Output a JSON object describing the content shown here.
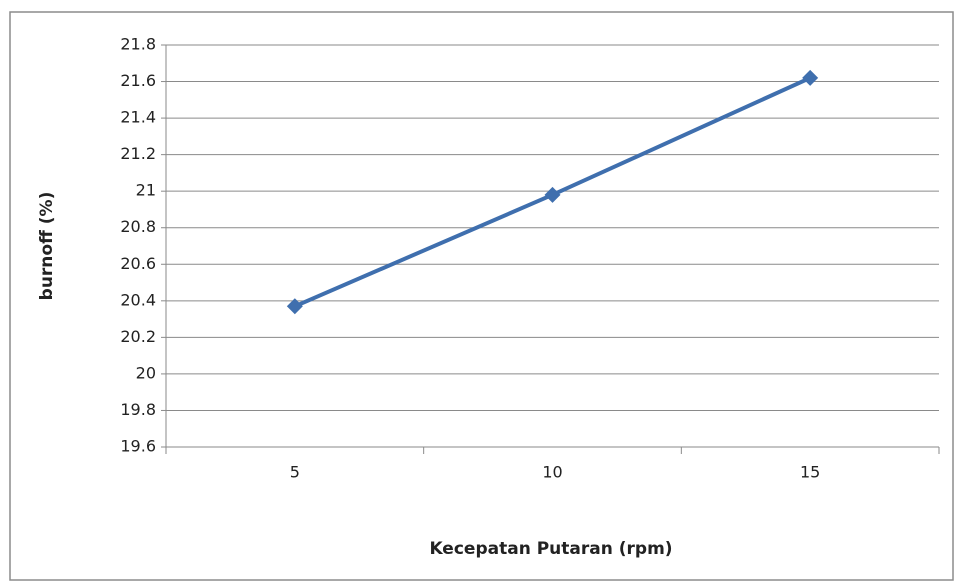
{
  "chart_data": {
    "type": "line",
    "x_label": "Kecepatan Putaran (rpm)",
    "y_label": "burnoff (%)",
    "categories": [
      "5",
      "10",
      "15"
    ],
    "values": [
      20.37,
      20.98,
      21.62
    ],
    "color": "#3f6fae",
    "ylim": [
      19.6,
      21.8
    ],
    "yticks": [
      19.6,
      19.8,
      20,
      20.2,
      20.4,
      20.6,
      20.8,
      21,
      21.2,
      21.4,
      21.6,
      21.8
    ],
    "grid": true
  }
}
